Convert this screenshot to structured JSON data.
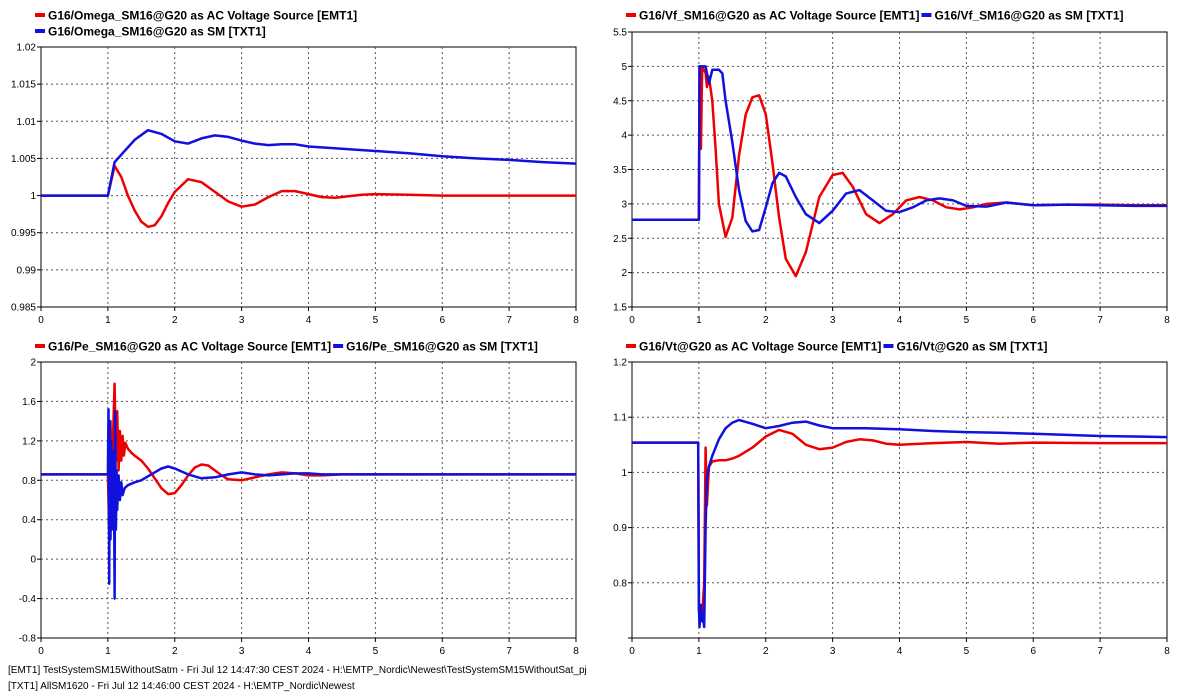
{
  "chart_data": [
    {
      "type": "line",
      "xlim": [
        0,
        8
      ],
      "ylim": [
        0.985,
        1.02
      ],
      "xticks": [
        "0",
        "1",
        "2",
        "3",
        "4",
        "5",
        "6",
        "7",
        "8"
      ],
      "yticks": [
        "0.985",
        "0.99",
        "0.995",
        "1",
        "1.005",
        "1.01",
        "1.015",
        "1.02"
      ],
      "grid": true,
      "legend_placement": "top-left",
      "series": [
        {
          "name": "G16/Omega_SM16@G20 as AC Voltage Source [EMT1]",
          "color": "#ee0000",
          "x": [
            0,
            1,
            1.1,
            1.2,
            1.3,
            1.4,
            1.5,
            1.6,
            1.7,
            1.8,
            1.9,
            2.0,
            2.2,
            2.4,
            2.6,
            2.8,
            3.0,
            3.2,
            3.4,
            3.6,
            3.8,
            4.0,
            4.2,
            4.4,
            4.6,
            4.8,
            5.0,
            5.5,
            6,
            6.5,
            7,
            7.5,
            8
          ],
          "y": [
            1,
            1,
            1.004,
            1.0025,
            1.0,
            0.998,
            0.9965,
            0.9958,
            0.996,
            0.9972,
            0.999,
            1.0005,
            1.0022,
            1.0018,
            1.0005,
            0.9992,
            0.9985,
            0.9988,
            0.9998,
            1.0006,
            1.0006,
            1.0002,
            0.9998,
            0.9997,
            0.9999,
            1.0001,
            1.0002,
            1.0001,
            1.0,
            1.0,
            1.0,
            1.0,
            1.0
          ]
        },
        {
          "name": "G16/Omega_SM16@G20 as SM  [TXT1]",
          "color": "#1111dd",
          "x": [
            0,
            1,
            1.1,
            1.2,
            1.4,
            1.6,
            1.8,
            2.0,
            2.2,
            2.4,
            2.6,
            2.8,
            3.0,
            3.2,
            3.4,
            3.6,
            3.8,
            4.0,
            4.5,
            5,
            5.5,
            6,
            6.5,
            7,
            7.5,
            8
          ],
          "y": [
            1,
            1,
            1.0045,
            1.0055,
            1.0075,
            1.0088,
            1.0083,
            1.0073,
            1.007,
            1.0077,
            1.0081,
            1.0079,
            1.0074,
            1.007,
            1.0068,
            1.0069,
            1.0069,
            1.0066,
            1.0063,
            1.006,
            1.0057,
            1.0053,
            1.005,
            1.0048,
            1.0045,
            1.0043
          ]
        }
      ]
    },
    {
      "type": "line",
      "xlim": [
        0,
        8
      ],
      "ylim": [
        1.5,
        5.5
      ],
      "xticks": [
        "0",
        "1",
        "2",
        "3",
        "4",
        "5",
        "6",
        "7",
        "8"
      ],
      "yticks": [
        "1.5",
        "2",
        "2.5",
        "3",
        "3.5",
        "4",
        "4.5",
        "5",
        "5.5"
      ],
      "grid": true,
      "legend_placement": "top-left",
      "series": [
        {
          "name": "G16/Vf_SM16@G20 as AC Voltage Source [EMT1]",
          "color": "#ee0000",
          "x": [
            0,
            1.0,
            1.01,
            1.03,
            1.05,
            1.1,
            1.12,
            1.15,
            1.2,
            1.25,
            1.3,
            1.4,
            1.5,
            1.6,
            1.7,
            1.8,
            1.9,
            2.0,
            2.1,
            2.2,
            2.3,
            2.45,
            2.6,
            2.8,
            3.0,
            3.15,
            3.3,
            3.5,
            3.7,
            3.9,
            4.1,
            4.3,
            4.5,
            4.7,
            4.9,
            5.1,
            5.3,
            5.6,
            6.0,
            6.5,
            7.0,
            7.5,
            8.0
          ],
          "y": [
            2.77,
            2.77,
            5.0,
            3.8,
            5.0,
            4.9,
            4.7,
            4.85,
            4.5,
            3.8,
            3.0,
            2.52,
            2.8,
            3.7,
            4.3,
            4.55,
            4.58,
            4.3,
            3.6,
            2.8,
            2.2,
            1.95,
            2.3,
            3.1,
            3.42,
            3.45,
            3.25,
            2.85,
            2.72,
            2.85,
            3.05,
            3.1,
            3.05,
            2.95,
            2.92,
            2.95,
            3.0,
            3.02,
            2.98,
            2.99,
            2.99,
            2.98,
            2.98
          ]
        },
        {
          "name": "G16/Vf_SM16@G20 as SM  [TXT1]",
          "color": "#1111dd",
          "x": [
            0,
            1.0,
            1.01,
            1.1,
            1.15,
            1.2,
            1.25,
            1.3,
            1.35,
            1.4,
            1.5,
            1.6,
            1.7,
            1.8,
            1.9,
            2.0,
            2.1,
            2.2,
            2.3,
            2.45,
            2.6,
            2.8,
            3.0,
            3.2,
            3.4,
            3.6,
            3.8,
            4.0,
            4.2,
            4.4,
            4.6,
            4.8,
            5.0,
            5.3,
            5.6,
            6.0,
            6.5,
            7.0,
            7.5,
            8.0
          ],
          "y": [
            2.77,
            2.77,
            5.0,
            5.0,
            4.75,
            4.95,
            4.95,
            4.95,
            4.9,
            4.5,
            3.9,
            3.2,
            2.75,
            2.6,
            2.62,
            2.95,
            3.3,
            3.45,
            3.4,
            3.1,
            2.85,
            2.72,
            2.9,
            3.15,
            3.2,
            3.05,
            2.9,
            2.88,
            2.95,
            3.05,
            3.08,
            3.05,
            2.97,
            2.96,
            3.02,
            2.98,
            2.99,
            2.98,
            2.97,
            2.97
          ]
        }
      ]
    },
    {
      "type": "line",
      "xlim": [
        0,
        8
      ],
      "ylim": [
        -0.8,
        2
      ],
      "xticks": [
        "0",
        "1",
        "2",
        "3",
        "4",
        "5",
        "6",
        "7",
        "8"
      ],
      "yticks": [
        "-0.8",
        "-0.4",
        "0",
        "0.4",
        "0.8",
        "1.2",
        "1.6",
        "2"
      ],
      "grid": true,
      "legend_placement": "top-left",
      "series": [
        {
          "name": "G16/Pe_SM16@G20 as AC Voltage Source [EMT1]",
          "color": "#ee0000",
          "x": [
            0,
            1.0,
            1.02,
            1.04,
            1.06,
            1.08,
            1.1,
            1.12,
            1.14,
            1.16,
            1.18,
            1.2,
            1.22,
            1.24,
            1.26,
            1.3,
            1.35,
            1.4,
            1.5,
            1.6,
            1.7,
            1.8,
            1.9,
            2.0,
            2.1,
            2.2,
            2.3,
            2.4,
            2.5,
            2.6,
            2.7,
            2.8,
            3.0,
            3.2,
            3.4,
            3.6,
            3.8,
            4.0,
            4.2,
            4.5,
            5.0,
            5.5,
            6,
            7,
            8
          ],
          "y": [
            0.86,
            0.86,
            0.3,
            1.4,
            0.5,
            1.3,
            1.78,
            1.0,
            1.5,
            0.9,
            1.3,
            1.0,
            1.25,
            1.05,
            1.18,
            1.12,
            1.08,
            1.05,
            1.0,
            0.92,
            0.82,
            0.72,
            0.66,
            0.67,
            0.75,
            0.85,
            0.93,
            0.96,
            0.95,
            0.9,
            0.85,
            0.81,
            0.8,
            0.83,
            0.86,
            0.88,
            0.87,
            0.85,
            0.85,
            0.86,
            0.86,
            0.86,
            0.86,
            0.86,
            0.86
          ]
        },
        {
          "name": "G16/Pe_SM16@G20 as SM  [TXT1]",
          "color": "#1111dd",
          "x": [
            0,
            1.0,
            1.01,
            1.02,
            1.03,
            1.04,
            1.05,
            1.06,
            1.07,
            1.08,
            1.09,
            1.1,
            1.11,
            1.12,
            1.13,
            1.14,
            1.16,
            1.18,
            1.2,
            1.22,
            1.25,
            1.3,
            1.4,
            1.5,
            1.6,
            1.7,
            1.8,
            1.9,
            2.0,
            2.2,
            2.4,
            2.6,
            2.8,
            3.0,
            3.2,
            3.4,
            3.6,
            3.8,
            4.0,
            4.2,
            4.5,
            5,
            6,
            7,
            8
          ],
          "y": [
            0.86,
            0.86,
            1.52,
            -0.25,
            1.4,
            0.2,
            1.2,
            0.3,
            1.1,
            0.4,
            1.0,
            -0.4,
            1.5,
            0.3,
            0.9,
            0.5,
            0.85,
            0.6,
            0.78,
            0.65,
            0.72,
            0.75,
            0.78,
            0.8,
            0.84,
            0.88,
            0.92,
            0.94,
            0.92,
            0.86,
            0.82,
            0.83,
            0.86,
            0.88,
            0.86,
            0.85,
            0.86,
            0.87,
            0.87,
            0.86,
            0.86,
            0.86,
            0.86,
            0.86,
            0.86
          ]
        }
      ]
    },
    {
      "type": "line",
      "xlim": [
        0,
        8
      ],
      "ylim": [
        0.7,
        1.2
      ],
      "xticks": [
        "0",
        "1",
        "2",
        "3",
        "4",
        "5",
        "6",
        "7",
        "8"
      ],
      "yticks": [
        "",
        "0.8",
        "0.9",
        "1",
        "1.1",
        "1.2"
      ],
      "grid": true,
      "legend_placement": "top-left",
      "series": [
        {
          "name": "G16/Vt@G20 as AC Voltage Source [EMT1]",
          "color": "#ee0000",
          "x": [
            0,
            0.99,
            1.0,
            1.02,
            1.05,
            1.08,
            1.1,
            1.12,
            1.15,
            1.2,
            1.3,
            1.4,
            1.5,
            1.6,
            1.8,
            2.0,
            2.2,
            2.4,
            2.6,
            2.8,
            3.0,
            3.2,
            3.4,
            3.6,
            3.8,
            4.0,
            4.5,
            5,
            5.5,
            6,
            7,
            8
          ],
          "y": [
            1.054,
            1.054,
            0.75,
            0.73,
            0.74,
            0.8,
            1.045,
            0.94,
            1.01,
            1.02,
            1.022,
            1.022,
            1.025,
            1.03,
            1.045,
            1.065,
            1.077,
            1.07,
            1.05,
            1.042,
            1.045,
            1.055,
            1.06,
            1.058,
            1.052,
            1.05,
            1.053,
            1.055,
            1.052,
            1.054,
            1.053,
            1.053
          ]
        },
        {
          "name": "G16/Vt@G20 as SM  [TXT1]",
          "color": "#1111dd",
          "x": [
            0,
            0.99,
            1.0,
            1.01,
            1.03,
            1.05,
            1.06,
            1.08,
            1.1,
            1.12,
            1.15,
            1.2,
            1.3,
            1.4,
            1.5,
            1.6,
            1.8,
            2.0,
            2.2,
            2.4,
            2.6,
            2.8,
            3.0,
            3.5,
            4.0,
            4.5,
            5,
            5.5,
            6,
            6.5,
            7,
            7.5,
            8
          ],
          "y": [
            1.054,
            1.054,
            0.76,
            0.72,
            0.76,
            0.73,
            0.74,
            0.72,
            0.9,
            0.99,
            1.01,
            1.03,
            1.06,
            1.08,
            1.09,
            1.095,
            1.088,
            1.08,
            1.084,
            1.09,
            1.092,
            1.085,
            1.08,
            1.08,
            1.078,
            1.075,
            1.073,
            1.072,
            1.07,
            1.068,
            1.066,
            1.065,
            1.064
          ]
        }
      ]
    }
  ],
  "footer": {
    "line1": "[EMT1] TestSystemSM15WithoutSatm - Fri Jul 12 14:47:30 CEST 2024 - H:\\EMTP_Nordic\\Newest\\TestSystemSM15WithoutSat_pj",
    "line2": "[TXT1] AllSM1620 - Fri Jul 12 14:46:00 CEST 2024 - H:\\EMTP_Nordic\\Newest"
  }
}
